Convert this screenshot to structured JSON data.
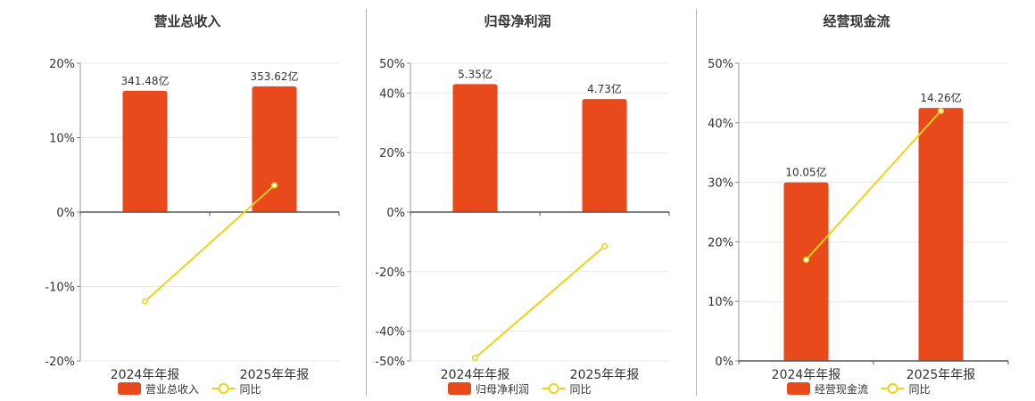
{
  "colors": {
    "bar": "#e84a1c",
    "line": "#f0d21a",
    "grid": "#e6e9f0",
    "axis": "#555555"
  },
  "chart_data": [
    {
      "type": "bar",
      "title": "营业总收入",
      "categories": [
        "2024年年报",
        "2025年年报"
      ],
      "series": [
        {
          "name": "营业总收入",
          "kind": "bar",
          "values": [
            16.3,
            16.9
          ],
          "labels": [
            "341.48亿",
            "353.62亿"
          ]
        },
        {
          "name": "同比",
          "kind": "line",
          "values": [
            -12.0,
            3.6
          ]
        }
      ],
      "ylim": [
        -20,
        20
      ],
      "ticks": [
        "20%",
        "10%",
        "0%",
        "-10%",
        "-20%"
      ],
      "tick_values": [
        20,
        10,
        0,
        -10,
        -20
      ],
      "grid": true,
      "legend": "bottom-center"
    },
    {
      "type": "bar",
      "title": "归母净利润",
      "categories": [
        "2024年年报",
        "2025年年报"
      ],
      "series": [
        {
          "name": "归母净利润",
          "kind": "bar",
          "values": [
            43.0,
            38.0
          ],
          "labels": [
            "5.35亿",
            "4.73亿"
          ]
        },
        {
          "name": "同比",
          "kind": "line",
          "values": [
            -49.0,
            -11.5
          ]
        }
      ],
      "ylim": [
        -50,
        50
      ],
      "ticks": [
        "50%",
        "40%",
        "20%",
        "0%",
        "-20%",
        "-40%",
        "-50%"
      ],
      "tick_values": [
        50,
        40,
        20,
        0,
        -20,
        -40,
        -50
      ],
      "grid": true,
      "legend": "bottom-center"
    },
    {
      "type": "bar",
      "title": "经营现金流",
      "categories": [
        "2024年年报",
        "2025年年报"
      ],
      "series": [
        {
          "name": "经营现金流",
          "kind": "bar",
          "values": [
            30.0,
            42.5
          ],
          "labels": [
            "10.05亿",
            "14.26亿"
          ]
        },
        {
          "name": "同比",
          "kind": "line",
          "values": [
            17.0,
            42.0
          ]
        }
      ],
      "ylim": [
        0,
        50
      ],
      "ticks": [
        "50%",
        "40%",
        "30%",
        "20%",
        "10%",
        "0%"
      ],
      "tick_values": [
        50,
        40,
        30,
        20,
        10,
        0
      ],
      "grid": true,
      "legend": "bottom-center"
    }
  ]
}
